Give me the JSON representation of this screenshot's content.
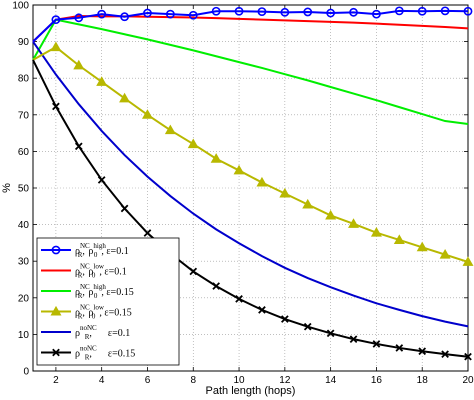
{
  "chart_data": {
    "type": "line",
    "title": "",
    "xlabel": "Path length (hops)",
    "ylabel": "%",
    "xlim": [
      1,
      20
    ],
    "ylim": [
      0,
      100
    ],
    "xticks": [
      2,
      4,
      6,
      8,
      10,
      12,
      14,
      16,
      18,
      20
    ],
    "yticks": [
      0,
      10,
      20,
      30,
      40,
      50,
      60,
      70,
      80,
      90,
      100
    ],
    "grid": true,
    "legend_position": "bottom-left",
    "x": [
      1,
      2,
      3,
      4,
      5,
      6,
      7,
      8,
      9,
      10,
      11,
      12,
      13,
      14,
      15,
      16,
      17,
      18,
      19,
      20
    ],
    "series": [
      {
        "name": "ρ_R^NC, ρ_0^high, ε=0.1",
        "legend": {
          "base": "ρ",
          "sub1": "R",
          "sup1": "NC",
          "sep": ", ",
          "base2": "ρ",
          "sub2": "0",
          "sup2": "high",
          "eps": ", ε=0.1"
        },
        "color": "#0000ff",
        "marker": "circle",
        "values": [
          90,
          96,
          96.5,
          97.5,
          96.8,
          97.8,
          97.5,
          97.2,
          98.3,
          98.3,
          98.2,
          98.0,
          98.1,
          97.8,
          98.0,
          97.5,
          98.4,
          98.3,
          98.4,
          98.3
        ]
      },
      {
        "name": "ρ_R^NC, ρ_0^low, ε=0.1",
        "legend": {
          "base": "ρ",
          "sub1": "R",
          "sup1": "NC",
          "sep": ", ",
          "base2": "ρ",
          "sub2": "0",
          "sup2": "low",
          "eps": ", ε=0.1"
        },
        "color": "#ff0000",
        "marker": "none",
        "values": [
          90,
          96,
          97,
          96.9,
          96.9,
          96.8,
          96.7,
          96.6,
          96.4,
          96.2,
          96.0,
          95.8,
          95.6,
          95.4,
          95.2,
          94.9,
          94.6,
          94.3,
          94.0,
          93.6
        ]
      },
      {
        "name": "ρ_R^NC, ρ_0^high, ε=0.15",
        "legend": {
          "base": "ρ",
          "sub1": "R",
          "sup1": "NC",
          "sep": ", ",
          "base2": "ρ",
          "sub2": "0",
          "sup2": "high",
          "eps": ", ε=0.15"
        },
        "color": "#00ee00",
        "marker": "none",
        "values": [
          85,
          96,
          94.7,
          93.4,
          92.0,
          90.6,
          89.1,
          87.6,
          86.0,
          84.4,
          82.8,
          81.1,
          79.4,
          77.6,
          75.8,
          74.0,
          72.1,
          70.2,
          68.3,
          67.5
        ]
      },
      {
        "name": "ρ_R^NC, ρ_0^low, ε=0.15",
        "legend": {
          "base": "ρ",
          "sub1": "R",
          "sup1": "NC",
          "sep": ", ",
          "base2": "ρ",
          "sub2": "0",
          "sup2": "low",
          "eps": ", ε=0.15"
        },
        "color": "#b8b800",
        "marker": "triangle",
        "values": [
          85,
          88.5,
          83.5,
          79,
          74.5,
          70,
          65.8,
          62,
          58,
          54.8,
          51.5,
          48.5,
          45.5,
          42.5,
          40.2,
          37.8,
          35.8,
          33.8,
          31.8,
          29.8
        ]
      },
      {
        "name": "ρ_R^noNC, ε=0.1",
        "legend": {
          "base": "ρ",
          "sub1": "R",
          "sup1": "noNC",
          "sep": ",",
          "base2": "",
          "sub2": "",
          "sup2": "",
          "eps": "ε=0.1"
        },
        "color": "#0000cc",
        "marker": "none",
        "values": [
          90,
          81,
          72.9,
          65.6,
          59.0,
          53.1,
          47.8,
          43.0,
          38.7,
          34.9,
          31.4,
          28.2,
          25.4,
          22.9,
          20.6,
          18.5,
          16.7,
          15.0,
          13.5,
          12.2
        ]
      },
      {
        "name": "ρ_R^noNC, ε=0.15",
        "legend": {
          "base": "ρ",
          "sub1": "R",
          "sup1": "noNC",
          "sep": ",",
          "base2": "",
          "sub2": "",
          "sup2": "",
          "eps": "ε=0.15"
        },
        "color": "#000000",
        "marker": "x",
        "values": [
          85,
          72.3,
          61.4,
          52.2,
          44.4,
          37.7,
          32.1,
          27.2,
          23.2,
          19.7,
          16.7,
          14.2,
          12.1,
          10.3,
          8.7,
          7.4,
          6.3,
          5.4,
          4.6,
          3.9
        ]
      }
    ]
  }
}
